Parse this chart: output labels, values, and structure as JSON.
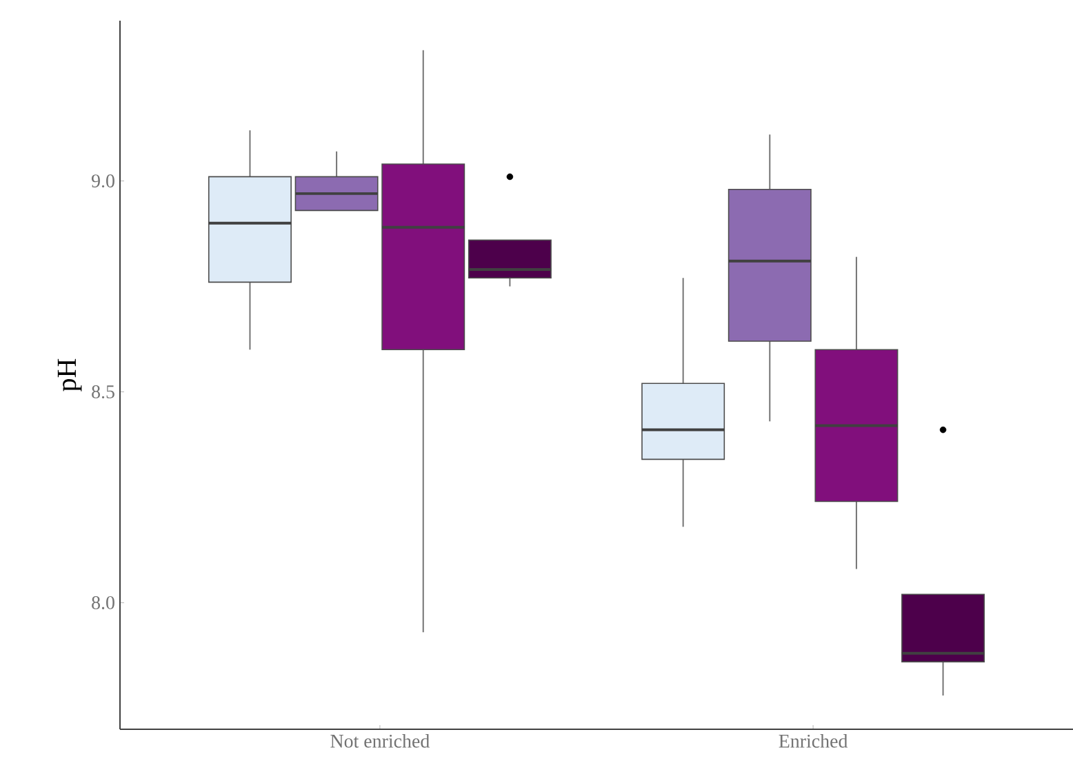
{
  "chart_data": {
    "type": "box",
    "ylabel": "pH",
    "categories": [
      "Not enriched",
      "Enriched"
    ],
    "ylim": [
      7.7,
      9.38
    ],
    "yticks": [
      {
        "value": 8,
        "label": "8.0"
      },
      {
        "value": 8.5,
        "label": "8.5"
      },
      {
        "value": 9,
        "label": "9.0"
      }
    ],
    "grid": false,
    "series": [
      {
        "color": "#deebf7",
        "boxes": [
          {
            "low": 8.6,
            "q1": 8.76,
            "median": 8.9,
            "q3": 9.01,
            "high": 9.12
          },
          {
            "low": 8.18,
            "q1": 8.34,
            "median": 8.41,
            "q3": 8.52,
            "high": 8.77
          }
        ]
      },
      {
        "color": "#8c6bb1",
        "boxes": [
          {
            "low": 8.93,
            "q1": 8.93,
            "median": 8.97,
            "q3": 9.01,
            "high": 9.07
          },
          {
            "low": 8.43,
            "q1": 8.62,
            "median": 8.81,
            "q3": 8.98,
            "high": 9.11
          }
        ]
      },
      {
        "color": "#810f7c",
        "boxes": [
          {
            "low": 7.93,
            "q1": 8.6,
            "median": 8.89,
            "q3": 9.04,
            "high": 9.31
          },
          {
            "low": 8.08,
            "q1": 8.24,
            "median": 8.42,
            "q3": 8.6,
            "high": 8.82
          }
        ]
      },
      {
        "color": "#4d004b",
        "boxes": [
          {
            "low": 8.75,
            "q1": 8.77,
            "median": 8.79,
            "q3": 8.86,
            "high": 8.86,
            "outliers": [
              9.01
            ]
          },
          {
            "low": 7.78,
            "q1": 7.86,
            "median": 7.88,
            "q3": 8.02,
            "high": 8.02,
            "outliers": [
              8.41
            ]
          }
        ]
      }
    ]
  }
}
